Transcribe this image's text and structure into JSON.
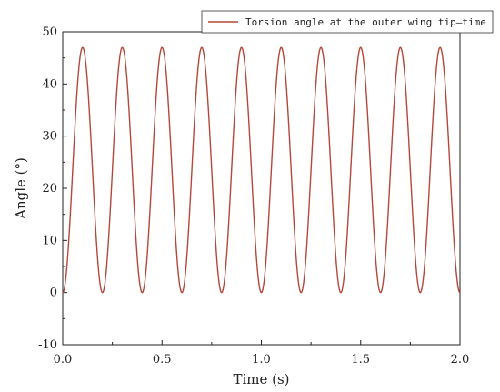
{
  "chart_data": {
    "type": "line",
    "title": "",
    "xlabel": "Time (s)",
    "ylabel": "Angle (°)",
    "xlim": [
      0.0,
      2.0
    ],
    "ylim": [
      -10,
      50
    ],
    "xticks": [
      0.0,
      0.5,
      1.0,
      1.5,
      2.0
    ],
    "xtick_labels": [
      "0.0",
      "0.5",
      "1.0",
      "1.5",
      "2.0"
    ],
    "yticks": [
      -10,
      0,
      10,
      20,
      30,
      40,
      50
    ],
    "ytick_labels": [
      "-10",
      "0",
      "10",
      "20",
      "30",
      "40",
      "50"
    ],
    "grid": false,
    "legend_position": "top-right",
    "series": [
      {
        "name": "Torsion angle at the outer wing tip—time",
        "color": "#b5473a",
        "period": 0.2,
        "min": 0,
        "max": 47,
        "peak_times": [
          0.1,
          0.3,
          0.5,
          0.7,
          0.9,
          1.1,
          1.3,
          1.5,
          1.7,
          1.9
        ],
        "trough_times": [
          0.0,
          0.2,
          0.4,
          0.6,
          0.8,
          1.0,
          1.2,
          1.4,
          1.6,
          1.8,
          2.0
        ]
      }
    ]
  }
}
